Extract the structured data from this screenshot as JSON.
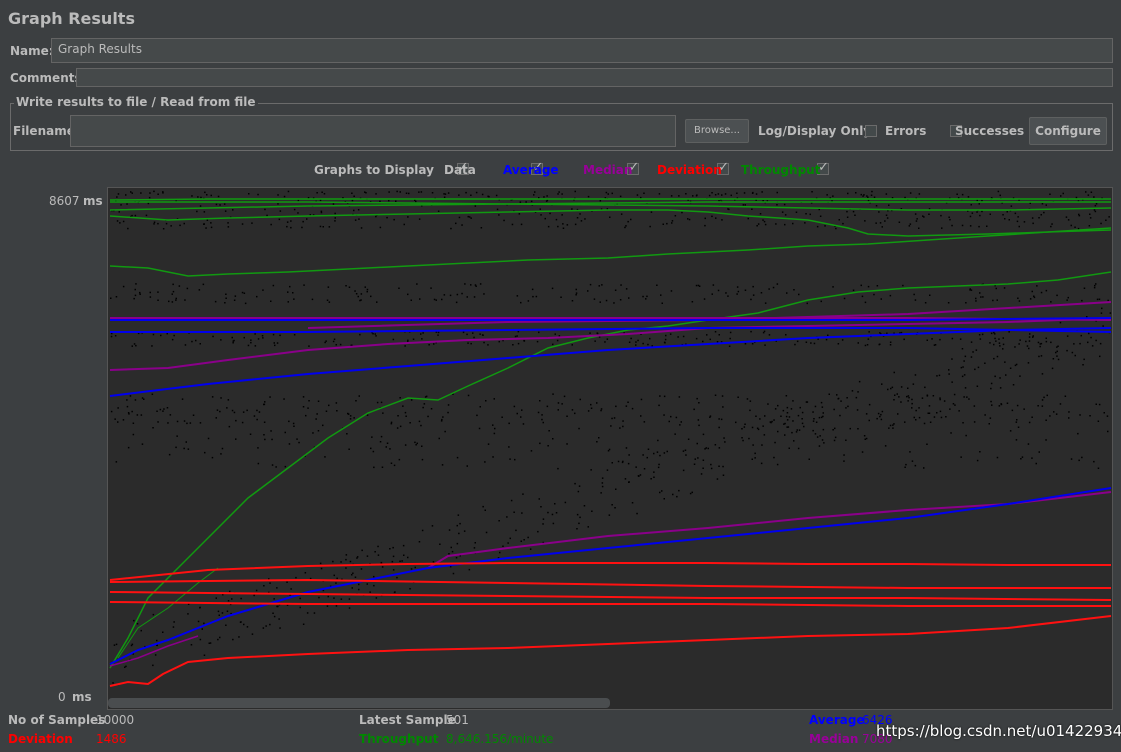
{
  "window": {
    "title": "Graph Results"
  },
  "form": {
    "name_label": "Name:",
    "name_value": "Graph Results",
    "comments_label": "Comments:",
    "comments_value": ""
  },
  "file_section": {
    "legend": "Write results to file / Read from file",
    "filename_label": "Filename",
    "filename_value": "",
    "browse_label": "Browse...",
    "log_display_label": "Log/Display Only:",
    "errors_label": "Errors",
    "errors_checked": false,
    "successes_label": "Successes",
    "successes_checked": false,
    "configure_label": "Configure"
  },
  "graphs_to_display": {
    "label": "Graphs to Display",
    "options": [
      {
        "label": "Data",
        "checked": true,
        "color": "#000000"
      },
      {
        "label": "Average",
        "checked": true,
        "color": "#0000ff"
      },
      {
        "label": "Median",
        "checked": true,
        "color": "#990099"
      },
      {
        "label": "Deviation",
        "checked": true,
        "color": "#ff0000"
      },
      {
        "label": "Throughput",
        "checked": true,
        "color": "#008800"
      }
    ]
  },
  "graph": {
    "y_max_label": "8607",
    "y_min_label": "0",
    "unit": "ms"
  },
  "stats": {
    "samples_label": "No of Samples",
    "samples_value": "10000",
    "deviation_label": "Deviation",
    "deviation_value": "1486",
    "latest_label": "Latest Sample",
    "latest_value": "501",
    "throughput_label": "Throughput",
    "throughput_value": "8,646.156/minute",
    "average_label": "Average",
    "average_value": "6426",
    "median_label": "Median",
    "median_value": "7080"
  },
  "watermark": "https://blog.csdn.net/u014229347"
}
